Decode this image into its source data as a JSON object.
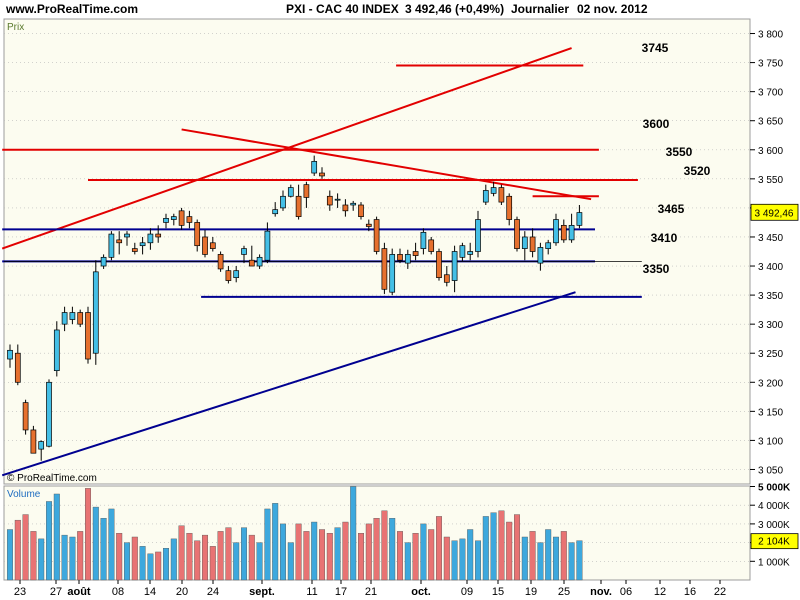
{
  "header": {
    "site": "www.ProRealTime.com",
    "instrument": "PXI - CAC 40 INDEX",
    "price_change": "3 492,46 (+0,49%)",
    "period": "Journalier",
    "date": "02 nov. 2012"
  },
  "price_panel": {
    "label": "Prix",
    "watermark": "© ProRealTime.com",
    "current_price_label": "3 492,46",
    "y_ticks": [
      "3 050",
      "3 100",
      "3 150",
      "3 200",
      "3 250",
      "3 300",
      "3 350",
      "3 400",
      "3 450",
      "3 500",
      "3 550",
      "3 600",
      "3 650",
      "3 700",
      "3 750",
      "3 800"
    ]
  },
  "volume_panel": {
    "label": "Volume",
    "y_ticks": [
      "1 000K",
      "2 000K",
      "3 000K",
      "4 000K",
      "5 000K"
    ],
    "current_volume_label": "2 104K"
  },
  "x_axis": {
    "labels": [
      "23",
      "27",
      "août",
      "08",
      "14",
      "20",
      "24",
      "sept.",
      "11",
      "17",
      "21",
      "oct.",
      "09",
      "15",
      "19",
      "25",
      "nov.",
      "06",
      "12",
      "16",
      "22"
    ]
  },
  "levels": {
    "3745": "3745",
    "3600": "3600",
    "3550": "3550",
    "3520": "3520",
    "3465": "3465",
    "3410": "3410",
    "3350": "3350"
  },
  "colors": {
    "up": "#44bfe6",
    "down": "#e6702e",
    "vol_up": "#3da8dd",
    "vol_down": "#e87373",
    "red_line": "#e20000",
    "blue_line": "#000090",
    "background": "#fcfcf0",
    "grid": "#b8b8b8"
  },
  "chart_data": {
    "type": "candlestick",
    "ylim": [
      3025,
      3825
    ],
    "volume_ylim": [
      0,
      5200
    ],
    "candles": [
      {
        "o": 3240,
        "h": 3265,
        "l": 3225,
        "c": 3255,
        "v": 2700
      },
      {
        "o": 3250,
        "h": 3265,
        "l": 3195,
        "c": 3200,
        "v": 3200
      },
      {
        "o": 3165,
        "h": 3170,
        "l": 3110,
        "c": 3118,
        "v": 3500
      },
      {
        "o": 3118,
        "h": 3125,
        "l": 3078,
        "c": 3078,
        "v": 2600
      },
      {
        "o": 3085,
        "h": 3100,
        "l": 3065,
        "c": 3098,
        "v": 2200
      },
      {
        "o": 3090,
        "h": 3205,
        "l": 3088,
        "c": 3200,
        "v": 4200
      },
      {
        "o": 3220,
        "h": 3305,
        "l": 3210,
        "c": 3290,
        "v": 4600
      },
      {
        "o": 3300,
        "h": 3330,
        "l": 3288,
        "c": 3320,
        "v": 2400
      },
      {
        "o": 3308,
        "h": 3330,
        "l": 3300,
        "c": 3320,
        "v": 2300
      },
      {
        "o": 3320,
        "h": 3325,
        "l": 3295,
        "c": 3300,
        "v": 2600
      },
      {
        "o": 3320,
        "h": 3330,
        "l": 3232,
        "c": 3240,
        "v": 4900
      },
      {
        "o": 3250,
        "h": 3410,
        "l": 3230,
        "c": 3390,
        "v": 3900
      },
      {
        "o": 3400,
        "h": 3420,
        "l": 3395,
        "c": 3415,
        "v": 3300
      },
      {
        "o": 3415,
        "h": 3460,
        "l": 3410,
        "c": 3455,
        "v": 3800
      },
      {
        "o": 3445,
        "h": 3460,
        "l": 3420,
        "c": 3440,
        "v": 2500
      },
      {
        "o": 3450,
        "h": 3460,
        "l": 3435,
        "c": 3455,
        "v": 2000
      },
      {
        "o": 3430,
        "h": 3440,
        "l": 3420,
        "c": 3425,
        "v": 2300
      },
      {
        "o": 3435,
        "h": 3450,
        "l": 3420,
        "c": 3440,
        "v": 1800
      },
      {
        "o": 3440,
        "h": 3465,
        "l": 3428,
        "c": 3455,
        "v": 1400
      },
      {
        "o": 3455,
        "h": 3470,
        "l": 3440,
        "c": 3450,
        "v": 1500
      },
      {
        "o": 3475,
        "h": 3490,
        "l": 3465,
        "c": 3482,
        "v": 1700
      },
      {
        "o": 3480,
        "h": 3490,
        "l": 3470,
        "c": 3485,
        "v": 2200
      },
      {
        "o": 3495,
        "h": 3500,
        "l": 3462,
        "c": 3470,
        "v": 2900
      },
      {
        "o": 3485,
        "h": 3495,
        "l": 3465,
        "c": 3475,
        "v": 2500
      },
      {
        "o": 3475,
        "h": 3480,
        "l": 3425,
        "c": 3435,
        "v": 2100
      },
      {
        "o": 3450,
        "h": 3462,
        "l": 3415,
        "c": 3420,
        "v": 2400
      },
      {
        "o": 3440,
        "h": 3450,
        "l": 3425,
        "c": 3430,
        "v": 1800
      },
      {
        "o": 3420,
        "h": 3425,
        "l": 3390,
        "c": 3395,
        "v": 2600
      },
      {
        "o": 3392,
        "h": 3400,
        "l": 3370,
        "c": 3375,
        "v": 2800
      },
      {
        "o": 3380,
        "h": 3400,
        "l": 3372,
        "c": 3392,
        "v": 2000
      },
      {
        "o": 3420,
        "h": 3435,
        "l": 3405,
        "c": 3430,
        "v": 2800
      },
      {
        "o": 3410,
        "h": 3435,
        "l": 3400,
        "c": 3400,
        "v": 2400
      },
      {
        "o": 3400,
        "h": 3420,
        "l": 3395,
        "c": 3415,
        "v": 2000
      },
      {
        "o": 3410,
        "h": 3475,
        "l": 3405,
        "c": 3460,
        "v": 3800
      },
      {
        "o": 3490,
        "h": 3510,
        "l": 3485,
        "c": 3497,
        "v": 4100
      },
      {
        "o": 3500,
        "h": 3530,
        "l": 3495,
        "c": 3520,
        "v": 3000
      },
      {
        "o": 3520,
        "h": 3540,
        "l": 3518,
        "c": 3535,
        "v": 2000
      },
      {
        "o": 3520,
        "h": 3540,
        "l": 3480,
        "c": 3485,
        "v": 3000
      },
      {
        "o": 3540,
        "h": 3545,
        "l": 3500,
        "c": 3518,
        "v": 2600
      },
      {
        "o": 3560,
        "h": 3590,
        "l": 3555,
        "c": 3580,
        "v": 3100
      },
      {
        "o": 3560,
        "h": 3570,
        "l": 3550,
        "c": 3555,
        "v": 2700
      },
      {
        "o": 3520,
        "h": 3530,
        "l": 3495,
        "c": 3505,
        "v": 2500
      },
      {
        "o": 3515,
        "h": 3525,
        "l": 3500,
        "c": 3515,
        "v": 2800
      },
      {
        "o": 3505,
        "h": 3515,
        "l": 3485,
        "c": 3495,
        "v": 3100
      },
      {
        "o": 3505,
        "h": 3512,
        "l": 3495,
        "c": 3508,
        "v": 5000
      },
      {
        "o": 3505,
        "h": 3510,
        "l": 3480,
        "c": 3485,
        "v": 2500
      },
      {
        "o": 3472,
        "h": 3480,
        "l": 3460,
        "c": 3468,
        "v": 3000
      },
      {
        "o": 3480,
        "h": 3485,
        "l": 3420,
        "c": 3425,
        "v": 3300
      },
      {
        "o": 3430,
        "h": 3440,
        "l": 3352,
        "c": 3360,
        "v": 3700
      },
      {
        "o": 3355,
        "h": 3430,
        "l": 3350,
        "c": 3420,
        "v": 3300
      },
      {
        "o": 3420,
        "h": 3430,
        "l": 3405,
        "c": 3410,
        "v": 2600
      },
      {
        "o": 3405,
        "h": 3428,
        "l": 3395,
        "c": 3420,
        "v": 2000
      },
      {
        "o": 3425,
        "h": 3440,
        "l": 3410,
        "c": 3418,
        "v": 2500
      },
      {
        "o": 3430,
        "h": 3465,
        "l": 3420,
        "c": 3458,
        "v": 3000
      },
      {
        "o": 3445,
        "h": 3450,
        "l": 3420,
        "c": 3425,
        "v": 2700
      },
      {
        "o": 3425,
        "h": 3430,
        "l": 3375,
        "c": 3380,
        "v": 3400
      },
      {
        "o": 3385,
        "h": 3400,
        "l": 3365,
        "c": 3372,
        "v": 2300
      },
      {
        "o": 3375,
        "h": 3435,
        "l": 3355,
        "c": 3425,
        "v": 2100
      },
      {
        "o": 3415,
        "h": 3440,
        "l": 3408,
        "c": 3435,
        "v": 2200
      },
      {
        "o": 3420,
        "h": 3440,
        "l": 3410,
        "c": 3425,
        "v": 2700
      },
      {
        "o": 3425,
        "h": 3495,
        "l": 3415,
        "c": 3480,
        "v": 2100
      },
      {
        "o": 3510,
        "h": 3540,
        "l": 3505,
        "c": 3530,
        "v": 3400
      },
      {
        "o": 3525,
        "h": 3545,
        "l": 3520,
        "c": 3535,
        "v": 3600
      },
      {
        "o": 3535,
        "h": 3540,
        "l": 3505,
        "c": 3510,
        "v": 3700
      },
      {
        "o": 3520,
        "h": 3525,
        "l": 3470,
        "c": 3480,
        "v": 3100
      },
      {
        "o": 3480,
        "h": 3485,
        "l": 3425,
        "c": 3430,
        "v": 3500
      },
      {
        "o": 3430,
        "h": 3460,
        "l": 3410,
        "c": 3450,
        "v": 2300
      },
      {
        "o": 3450,
        "h": 3465,
        "l": 3415,
        "c": 3425,
        "v": 2600
      },
      {
        "o": 3405,
        "h": 3440,
        "l": 3392,
        "c": 3432,
        "v": 2000
      },
      {
        "o": 3430,
        "h": 3445,
        "l": 3420,
        "c": 3440,
        "v": 2700
      },
      {
        "o": 3440,
        "h": 3490,
        "l": 3435,
        "c": 3480,
        "v": 2300
      },
      {
        "o": 3470,
        "h": 3480,
        "l": 3440,
        "c": 3445,
        "v": 2600
      },
      {
        "o": 3445,
        "h": 3490,
        "l": 3440,
        "c": 3470,
        "v": 2000
      },
      {
        "o": 3470,
        "h": 3505,
        "l": 3465,
        "c": 3492,
        "v": 2104
      }
    ],
    "red_lines": [
      {
        "x1": -1,
        "y1": 3430,
        "x2": 72,
        "y2": 3775
      },
      {
        "x1": 22,
        "y1": 3635,
        "x2": 74.5,
        "y2": 3515
      },
      {
        "x1": -1,
        "y1": 3600,
        "x2": 75.5,
        "y2": 3600
      },
      {
        "x1": 10,
        "y1": 3548,
        "x2": 80.5,
        "y2": 3548
      },
      {
        "x1": 67,
        "y1": 3520,
        "x2": 75.5,
        "y2": 3520
      },
      {
        "x1": 49.5,
        "y1": 3745,
        "x2": 73.5,
        "y2": 3745
      }
    ],
    "blue_lines": [
      {
        "x1": -1,
        "y1": 3463,
        "x2": 75,
        "y2": 3463
      },
      {
        "x1": -1,
        "y1": 3408,
        "x2": 75,
        "y2": 3408
      },
      {
        "x1": 24.5,
        "y1": 3347,
        "x2": 81,
        "y2": 3347
      },
      {
        "x1": -1,
        "y1": 3040,
        "x2": 72.5,
        "y2": 3355
      }
    ]
  }
}
